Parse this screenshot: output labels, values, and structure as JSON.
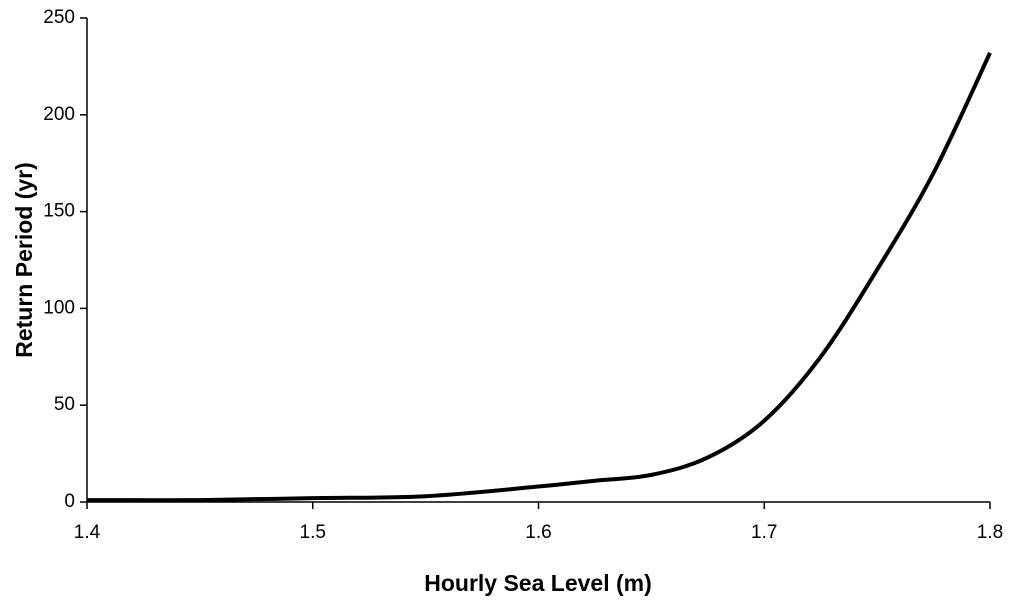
{
  "chart_data": {
    "type": "line",
    "x_label": "Hourly Sea Level (m)",
    "y_label": "Return Period (yr)",
    "x": [
      1.4,
      1.45,
      1.5,
      1.55,
      1.6,
      1.625,
      1.65,
      1.675,
      1.7,
      1.725,
      1.75,
      1.775,
      1.8
    ],
    "values": [
      1,
      1,
      2,
      3,
      8,
      11,
      14,
      23,
      42,
      75,
      120,
      170,
      232
    ],
    "color": "#000000",
    "xlim": [
      1.4,
      1.8
    ],
    "xticks": [
      1.4,
      1.5,
      1.6,
      1.7,
      1.8
    ],
    "ylim": [
      0,
      250
    ],
    "yticks": [
      0,
      50,
      100,
      150,
      200,
      250
    ],
    "grid": false
  }
}
